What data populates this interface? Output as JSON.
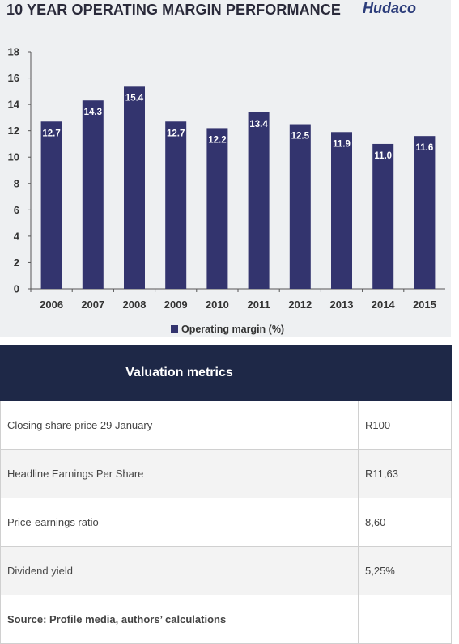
{
  "chart_data": {
    "type": "bar",
    "title": "10 YEAR OPERATING MARGIN PERFORMANCE",
    "brand": "Hudaco",
    "categories": [
      "2006",
      "2007",
      "2008",
      "2009",
      "2010",
      "2011",
      "2012",
      "2013",
      "2014",
      "2015"
    ],
    "series": [
      {
        "name": "Operating margin (%)",
        "values": [
          12.7,
          14.3,
          15.4,
          12.7,
          12.2,
          13.4,
          12.5,
          11.9,
          11.0,
          11.6
        ]
      }
    ],
    "data_labels": [
      "12.7",
      "14.3",
      "15.4",
      "12.7",
      "12.2",
      "13.4",
      "12.5",
      "11.9",
      "11.0",
      "11.6"
    ],
    "ylim": [
      0,
      18
    ],
    "yticks": [
      0,
      2,
      4,
      6,
      8,
      10,
      12,
      14,
      16,
      18
    ],
    "grid": false,
    "legend_position": "bottom",
    "colors": {
      "bar": "#33346e",
      "label": "#ffffff",
      "axis": "#555555",
      "panel": "#eef0f2"
    }
  },
  "table": {
    "header": "Valuation metrics",
    "header_bg": "#1e2847",
    "rows": [
      {
        "label": "Closing share price 29 January",
        "value": "R100"
      },
      {
        "label": "Headline Earnings Per Share",
        "value": "R11,63"
      },
      {
        "label": "Price-earnings ratio",
        "value": "8,60"
      },
      {
        "label": "Dividend yield",
        "value": "5,25%"
      }
    ],
    "source": "Source: Profile media, authors’ calculations"
  }
}
